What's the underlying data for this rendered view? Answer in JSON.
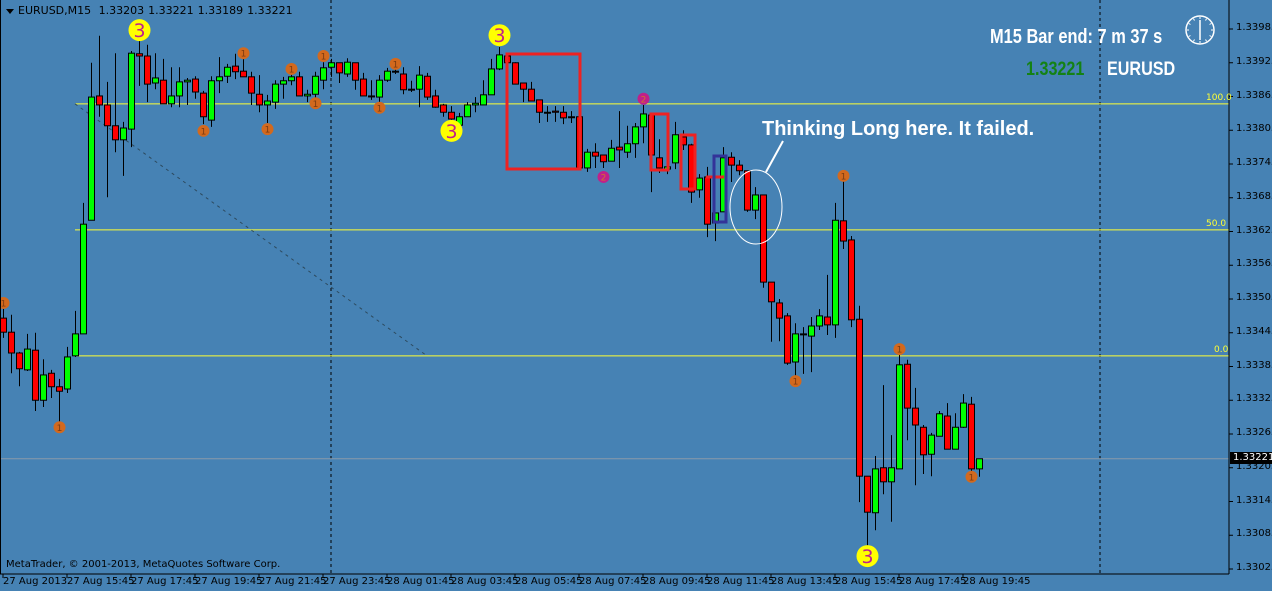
{
  "header": {
    "symbol_timeframe": "EURUSD,M15",
    "open": "1.33203",
    "high": "1.33221",
    "low": "1.33189",
    "close": "1.33221"
  },
  "copyright": "MetaTrader, © 2001-2013, MetaQuotes Software Corp.",
  "bar_timer": {
    "text": "M15 Bar end: 7 m 37 s",
    "icon": "clock-icon"
  },
  "quote": {
    "price": "1.33221",
    "symbol": "EURUSD",
    "price_color": "#148214"
  },
  "annotation_text": "Thinking Long here. It failed.",
  "colors": {
    "background": "#4682b4",
    "bull": "#00ff00",
    "bear": "#ff0000",
    "level_line": "#ffff33",
    "marker_1": "#d2691e",
    "marker_2": "#c0208a",
    "marker_3": "#ffff00"
  },
  "chart_data": {
    "type": "candlestick",
    "symbol": "EURUSD",
    "timeframe": "M15",
    "ylim": [
      1.33025,
      1.34
    ],
    "y_tick_labels": [
      "1.33985",
      "1.33925",
      "1.33865",
      "1.33805",
      "1.33745",
      "1.33685",
      "1.33625",
      "1.33565",
      "1.33505",
      "1.33445",
      "1.33385",
      "1.33325",
      "1.33265",
      "1.33205",
      "1.33145",
      "1.33085",
      "1.33025"
    ],
    "x_tick_labels": [
      "27 Aug 2013",
      "27 Aug 15:45",
      "27 Aug 17:45",
      "27 Aug 19:45",
      "27 Aug 21:45",
      "27 Aug 23:45",
      "28 Aug 01:45",
      "28 Aug 03:45",
      "28 Aug 05:45",
      "28 Aug 07:45",
      "28 Aug 09:45",
      "28 Aug 11:45",
      "28 Aug 13:45",
      "28 Aug 15:45",
      "28 Aug 17:45",
      "28 Aug 19:45"
    ],
    "current_bid": "1.33221",
    "ohlc": [
      [
        1.33471,
        1.33491,
        1.33436,
        1.33446
      ],
      [
        1.33446,
        1.33477,
        1.33373,
        1.33409
      ],
      [
        1.33409,
        1.33411,
        1.3335,
        1.33381
      ],
      [
        1.33379,
        1.33443,
        1.33377,
        1.33416
      ],
      [
        1.33414,
        1.33445,
        1.33306,
        1.33325
      ],
      [
        1.33325,
        1.33398,
        1.33313,
        1.3337
      ],
      [
        1.33373,
        1.33379,
        1.33329,
        1.33349
      ],
      [
        1.33349,
        1.33363,
        1.33281,
        1.33341
      ],
      [
        1.33345,
        1.3342,
        1.33338,
        1.33402
      ],
      [
        1.33404,
        1.33484,
        1.33402,
        1.33443
      ],
      [
        1.33443,
        1.33676,
        1.33443,
        1.33638
      ],
      [
        1.33645,
        1.33925,
        1.33645,
        1.33864
      ],
      [
        1.33866,
        1.33973,
        1.33829,
        1.3385
      ],
      [
        1.3385,
        1.33891,
        1.33686,
        1.33813
      ],
      [
        1.33813,
        1.33942,
        1.33766,
        1.33788
      ],
      [
        1.33788,
        1.3382,
        1.33724,
        1.33809
      ],
      [
        1.33807,
        1.33946,
        1.33775,
        1.33942
      ],
      [
        1.33941,
        1.33964,
        1.33884,
        1.33937
      ],
      [
        1.33937,
        1.33957,
        1.33855,
        1.33887
      ],
      [
        1.33889,
        1.33942,
        1.33878,
        1.33898
      ],
      [
        1.33894,
        1.33932,
        1.33852,
        1.33852
      ],
      [
        1.33852,
        1.33917,
        1.33846,
        1.33866
      ],
      [
        1.33866,
        1.33917,
        1.33846,
        1.33891
      ],
      [
        1.33891,
        1.33898,
        1.3385,
        1.33894
      ],
      [
        1.33896,
        1.33901,
        1.33861,
        1.33873
      ],
      [
        1.33871,
        1.33875,
        1.33816,
        1.33829
      ],
      [
        1.33823,
        1.33901,
        1.33811,
        1.33893
      ],
      [
        1.33893,
        1.33935,
        1.33871,
        1.339
      ],
      [
        1.33901,
        1.33923,
        1.33889,
        1.33917
      ],
      [
        1.33919,
        1.33941,
        1.33896,
        1.33909
      ],
      [
        1.3391,
        1.33942,
        1.339,
        1.339
      ],
      [
        1.339,
        1.33909,
        1.3385,
        1.33871
      ],
      [
        1.33869,
        1.33903,
        1.33837,
        1.3385
      ],
      [
        1.3385,
        1.33868,
        1.33818,
        1.33857
      ],
      [
        1.33855,
        1.33894,
        1.33843,
        1.33887
      ],
      [
        1.33887,
        1.339,
        1.33861,
        1.33893
      ],
      [
        1.33893,
        1.33907,
        1.33885,
        1.339
      ],
      [
        1.339,
        1.33909,
        1.33866,
        1.33866
      ],
      [
        1.33866,
        1.33877,
        1.33855,
        1.33869
      ],
      [
        1.33869,
        1.33909,
        1.33862,
        1.33901
      ],
      [
        1.33894,
        1.33926,
        1.33878,
        1.33916
      ],
      [
        1.33917,
        1.33932,
        1.339,
        1.33925
      ],
      [
        1.33925,
        1.33925,
        1.33889,
        1.33907
      ],
      [
        1.33905,
        1.33933,
        1.339,
        1.33926
      ],
      [
        1.33925,
        1.33925,
        1.33877,
        1.33894
      ],
      [
        1.33896,
        1.33907,
        1.33866,
        1.33866
      ],
      [
        1.33866,
        1.33894,
        1.33859,
        1.33866
      ],
      [
        1.33864,
        1.33903,
        1.3385,
        1.33894
      ],
      [
        1.33894,
        1.33916,
        1.33891,
        1.3391
      ],
      [
        1.3391,
        1.33925,
        1.33905,
        1.33909
      ],
      [
        1.33905,
        1.33917,
        1.33869,
        1.33877
      ],
      [
        1.33878,
        1.33893,
        1.33873,
        1.33877
      ],
      [
        1.33878,
        1.33919,
        1.33846,
        1.33903
      ],
      [
        1.33901,
        1.33907,
        1.33859,
        1.33864
      ],
      [
        1.33866,
        1.33877,
        1.33845,
        1.33846
      ],
      [
        1.3385,
        1.33852,
        1.33829,
        1.33837
      ],
      [
        1.33837,
        1.33848,
        1.3382,
        1.33825
      ],
      [
        1.33814,
        1.33836,
        1.33811,
        1.33829
      ],
      [
        1.33829,
        1.33855,
        1.33829,
        1.3385
      ],
      [
        1.3385,
        1.33864,
        1.33837,
        1.33853
      ],
      [
        1.3385,
        1.33894,
        1.3385,
        1.33868
      ],
      [
        1.33868,
        1.33932,
        1.33868,
        1.33914
      ],
      [
        1.33914,
        1.33953,
        1.33912,
        1.33939
      ],
      [
        1.33937,
        1.33939,
        1.33925,
        1.33925
      ],
      [
        1.33925,
        1.33926,
        1.33887,
        1.33887
      ],
      [
        1.33889,
        1.33889,
        1.33855,
        1.33878
      ],
      [
        1.33878,
        1.33891,
        1.33857,
        1.33857
      ],
      [
        1.33859,
        1.33859,
        1.33818,
        1.33837
      ],
      [
        1.33837,
        1.33848,
        1.3382,
        1.33837
      ],
      [
        1.33839,
        1.33848,
        1.3382,
        1.33837
      ],
      [
        1.33837,
        1.33848,
        1.33816,
        1.33827
      ],
      [
        1.33829,
        1.33839,
        1.33818,
        1.33829
      ],
      [
        1.33829,
        1.33829,
        1.33738,
        1.33738
      ],
      [
        1.33738,
        1.33772,
        1.33731,
        1.33766
      ],
      [
        1.33766,
        1.33782,
        1.33738,
        1.33759
      ],
      [
        1.33761,
        1.33761,
        1.33738,
        1.33749
      ],
      [
        1.3375,
        1.33788,
        1.3375,
        1.33773
      ],
      [
        1.33775,
        1.33839,
        1.33738,
        1.3377
      ],
      [
        1.33766,
        1.33813,
        1.33756,
        1.33781
      ],
      [
        1.33781,
        1.33818,
        1.33756,
        1.33811
      ],
      [
        1.33811,
        1.3385,
        1.33782,
        1.33834
      ],
      [
        1.33832,
        1.33836,
        1.33695,
        1.33761
      ],
      [
        1.33756,
        1.33789,
        1.33729,
        1.33738
      ],
      [
        1.33736,
        1.3374,
        1.33727,
        1.3374
      ],
      [
        1.33747,
        1.3382,
        1.33736,
        1.33797
      ],
      [
        1.33793,
        1.33805,
        1.3377,
        1.33779
      ],
      [
        1.33779,
        1.33781,
        1.33676,
        1.33695
      ],
      [
        1.33699,
        1.33727,
        1.33685,
        1.3372
      ],
      [
        1.33722,
        1.3374,
        1.33615,
        1.33638
      ],
      [
        1.3364,
        1.33658,
        1.33608,
        1.33658
      ],
      [
        1.3366,
        1.33775,
        1.3366,
        1.33756
      ],
      [
        1.33757,
        1.33766,
        1.33713,
        1.33743
      ],
      [
        1.33743,
        1.33752,
        1.33725,
        1.33733
      ],
      [
        1.33733,
        1.33733,
        1.3366,
        1.33663
      ],
      [
        1.33663,
        1.33704,
        1.33647,
        1.3369
      ],
      [
        1.3369,
        1.3369,
        1.33525,
        1.33535
      ],
      [
        1.33535,
        1.33535,
        1.33429,
        1.335
      ],
      [
        1.33498,
        1.33505,
        1.3343,
        1.33471
      ],
      [
        1.33475,
        1.3348,
        1.33388,
        1.33391
      ],
      [
        1.33393,
        1.33462,
        1.33356,
        1.33443
      ],
      [
        1.33443,
        1.33455,
        1.33372,
        1.33443
      ],
      [
        1.33439,
        1.33473,
        1.33375,
        1.33457
      ],
      [
        1.33457,
        1.33487,
        1.3345,
        1.33475
      ],
      [
        1.33473,
        1.33548,
        1.33441,
        1.33459
      ],
      [
        1.33459,
        1.33676,
        1.33436,
        1.33645
      ],
      [
        1.33644,
        1.33722,
        1.33594,
        1.33608
      ],
      [
        1.3361,
        1.33617,
        1.33455,
        1.33468
      ],
      [
        1.33469,
        1.33493,
        1.33144,
        1.3319
      ],
      [
        1.3319,
        1.3319,
        1.33062,
        1.33126
      ],
      [
        1.33125,
        1.33226,
        1.33094,
        1.33203
      ],
      [
        1.33205,
        1.33352,
        1.33158,
        1.3318
      ],
      [
        1.3318,
        1.33263,
        1.33109,
        1.33205
      ],
      [
        1.33203,
        1.33409,
        1.33203,
        1.33388
      ],
      [
        1.33389,
        1.33397,
        1.33254,
        1.33311
      ],
      [
        1.33311,
        1.33347,
        1.33174,
        1.33281
      ],
      [
        1.33277,
        1.33281,
        1.33194,
        1.33228
      ],
      [
        1.33229,
        1.33267,
        1.3319,
        1.33263
      ],
      [
        1.33261,
        1.33306,
        1.33261,
        1.33301
      ],
      [
        1.33297,
        1.3332,
        1.33238,
        1.33238
      ],
      [
        1.33238,
        1.33302,
        1.33238,
        1.33277
      ],
      [
        1.33277,
        1.33336,
        1.33276,
        1.3332
      ],
      [
        1.33318,
        1.33331,
        1.33196,
        1.33203
      ],
      [
        1.33203,
        1.33221,
        1.33189,
        1.33221
      ]
    ],
    "fib_levels": [
      {
        "label": "100.0",
        "price": 1.33852
      },
      {
        "label": "50.0",
        "price": 1.33628
      },
      {
        "label": "0.0",
        "price": 1.33404
      }
    ],
    "trendline": {
      "from": {
        "bar": 9,
        "price": 1.33852
      },
      "to": {
        "bar": 53,
        "price": 1.33404
      }
    },
    "markers": [
      {
        "label": "1",
        "kind": 1,
        "bar": 0,
        "price": 1.33498
      },
      {
        "label": "1",
        "kind": 1,
        "bar": 7,
        "price": 1.33277
      },
      {
        "label": "3",
        "kind": 3,
        "bar": 17,
        "price": 1.33983
      },
      {
        "label": "1",
        "kind": 1,
        "bar": 25,
        "price": 1.33804
      },
      {
        "label": "1",
        "kind": 1,
        "bar": 30,
        "price": 1.33942
      },
      {
        "label": "1",
        "kind": 1,
        "bar": 33,
        "price": 1.33807
      },
      {
        "label": "1",
        "kind": 1,
        "bar": 36,
        "price": 1.33914
      },
      {
        "label": "1",
        "kind": 1,
        "bar": 39,
        "price": 1.33853
      },
      {
        "label": "1",
        "kind": 1,
        "bar": 40,
        "price": 1.33937
      },
      {
        "label": "1",
        "kind": 1,
        "bar": 47,
        "price": 1.33845
      },
      {
        "label": "1",
        "kind": 1,
        "bar": 49,
        "price": 1.33923
      },
      {
        "label": "3",
        "kind": 3,
        "bar": 56,
        "price": 1.33804
      },
      {
        "label": "3",
        "kind": 3,
        "bar": 62,
        "price": 1.33974
      },
      {
        "label": "2",
        "kind": 2,
        "bar": 75,
        "price": 1.33722
      },
      {
        "label": "2",
        "kind": 2,
        "bar": 80,
        "price": 1.33861
      },
      {
        "label": "1",
        "kind": 1,
        "bar": 99,
        "price": 1.33359
      },
      {
        "label": "1",
        "kind": 1,
        "bar": 105,
        "price": 1.33724
      },
      {
        "label": "3",
        "kind": 3,
        "bar": 108,
        "price": 1.33048
      },
      {
        "label": "1",
        "kind": 1,
        "bar": 112,
        "price": 1.33416
      },
      {
        "label": "1",
        "kind": 1,
        "bar": 121,
        "price": 1.33189
      }
    ]
  }
}
